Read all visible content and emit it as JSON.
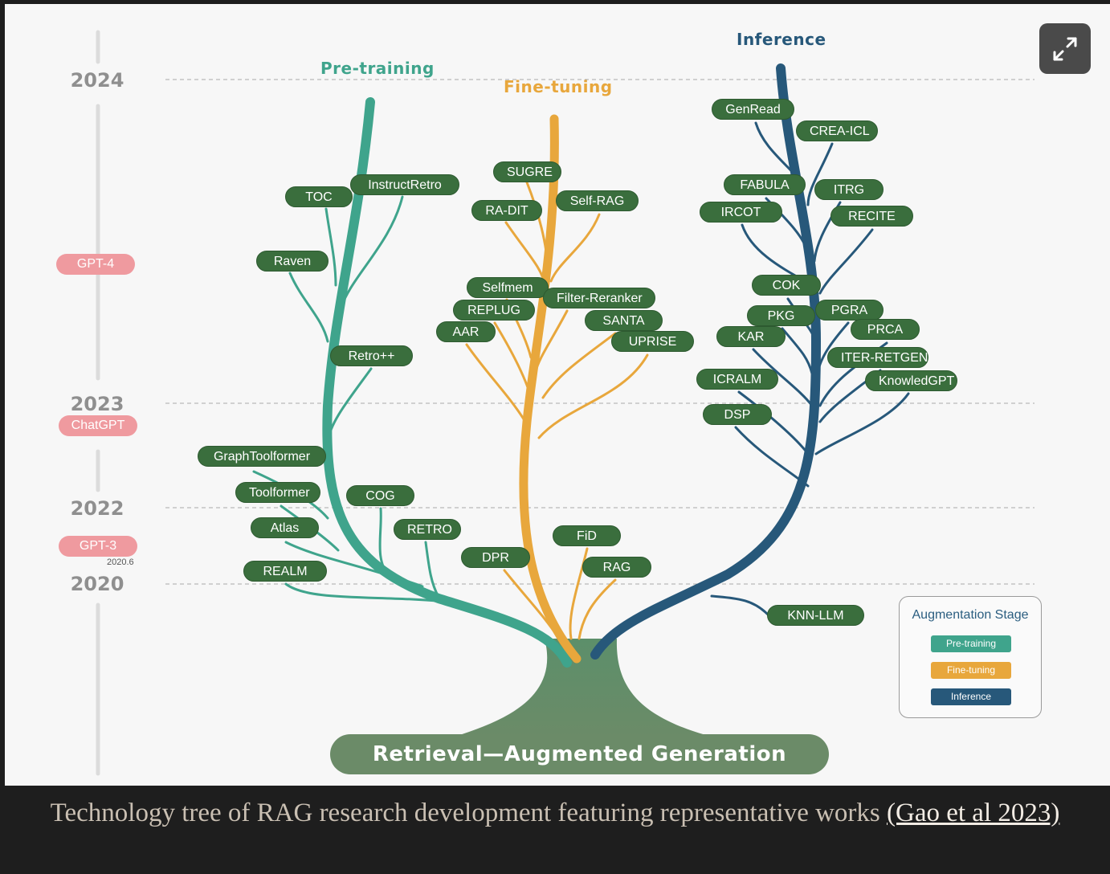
{
  "years": [
    "2024",
    "2023",
    "2022",
    "2020"
  ],
  "models": [
    {
      "name": "GPT-4"
    },
    {
      "name": "ChatGPT"
    },
    {
      "name": "GPT-3",
      "date": "2020.6"
    }
  ],
  "stages": {
    "pretraining": "Pre-training",
    "finetuning": "Fine-tuning",
    "inference": "Inference"
  },
  "nodes": {
    "pretraining": [
      "InstructRetro",
      "TOC",
      "Raven",
      "Retro++",
      "GraphToolformer",
      "Toolformer",
      "COG",
      "Atlas",
      "RETRO",
      "REALM"
    ],
    "finetuning": [
      "SUGRE",
      "RA-DIT",
      "Self-RAG",
      "Selfmem",
      "Filter-Reranker",
      "REPLUG",
      "SANTA",
      "AAR",
      "UPRISE",
      "FiD",
      "DPR",
      "RAG"
    ],
    "inference": [
      "GenRead",
      "CREA-ICL",
      "FABULA",
      "ITRG",
      "IRCOT",
      "RECITE",
      "COK",
      "PKG",
      "PGRA",
      "KAR",
      "PRCA",
      "ITER-RETGEN",
      "ICRALM",
      "KnowledGPT",
      "DSP",
      "KNN-LLM"
    ]
  },
  "root": "Retrieval—Augmented Generation",
  "legend": {
    "title": "Augmentation Stage",
    "items": [
      "Pre-training",
      "Fine-tuning",
      "Inference"
    ]
  },
  "colors": {
    "pretraining": "#3fa48c",
    "finetuning": "#e8a73c",
    "inference": "#27587a",
    "node": "#3a6e3d",
    "root": "#6b8b68",
    "model_badge": "#ef9a9f"
  },
  "caption": {
    "text": "Technology tree of RAG research development featuring representative works",
    "link": "(Gao et al 2023)"
  }
}
